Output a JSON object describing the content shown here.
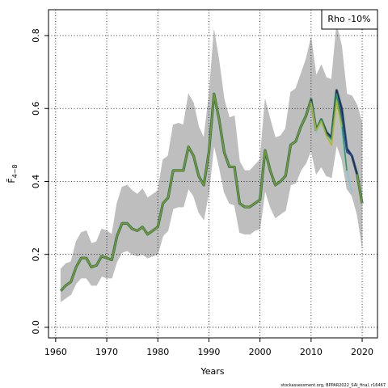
{
  "chart_data": {
    "type": "line",
    "annotation": "Rho -10%",
    "xlabel": "Years",
    "ylabel": "F̄",
    "ylabel_subscript": "4−8",
    "source": "stockassessment.org, BPPAR2022_SAI_final, r16467",
    "xlim": [
      1958.6,
      2023
    ],
    "ylim": [
      -0.029,
      0.871
    ],
    "xticks": [
      1960,
      1970,
      1980,
      1990,
      2000,
      2010,
      2020
    ],
    "yticks": [
      {
        "value": 0,
        "label": "0.0"
      },
      0.2,
      0.4,
      0.6,
      0.8
    ],
    "grid": true,
    "band": {
      "color": "#bebebe",
      "x": [
        1961,
        1962,
        1963,
        1964,
        1965,
        1966,
        1967,
        1968,
        1969,
        1970,
        1971,
        1972,
        1973,
        1974,
        1975,
        1976,
        1977,
        1978,
        1979,
        1980,
        1981,
        1982,
        1983,
        1984,
        1985,
        1986,
        1987,
        1988,
        1989,
        1990,
        1991,
        1992,
        1993,
        1994,
        1995,
        1996,
        1997,
        1998,
        1999,
        2000,
        2001,
        2002,
        2003,
        2004,
        2005,
        2006,
        2007,
        2008,
        2009,
        2010,
        2011,
        2012,
        2013,
        2014,
        2015,
        2016,
        2017,
        2018,
        2019,
        2020
      ],
      "upper": [
        0.16,
        0.175,
        0.18,
        0.235,
        0.26,
        0.265,
        0.23,
        0.235,
        0.27,
        0.265,
        0.255,
        0.34,
        0.385,
        0.39,
        0.375,
        0.365,
        0.38,
        0.355,
        0.365,
        0.375,
        0.46,
        0.47,
        0.555,
        0.56,
        0.555,
        0.64,
        0.615,
        0.55,
        0.52,
        0.635,
        0.815,
        0.73,
        0.625,
        0.575,
        0.58,
        0.455,
        0.43,
        0.43,
        0.445,
        0.46,
        0.625,
        0.57,
        0.52,
        0.525,
        0.545,
        0.645,
        0.655,
        0.695,
        0.735,
        0.795,
        0.69,
        0.72,
        0.685,
        0.68,
        0.83,
        0.77,
        0.64,
        0.635,
        0.61,
        0.56
      ],
      "lower": [
        0.07,
        0.08,
        0.09,
        0.12,
        0.135,
        0.135,
        0.115,
        0.115,
        0.14,
        0.135,
        0.135,
        0.18,
        0.205,
        0.21,
        0.2,
        0.195,
        0.2,
        0.19,
        0.195,
        0.2,
        0.25,
        0.265,
        0.325,
        0.33,
        0.33,
        0.38,
        0.36,
        0.315,
        0.295,
        0.37,
        0.5,
        0.44,
        0.37,
        0.34,
        0.335,
        0.26,
        0.255,
        0.255,
        0.265,
        0.27,
        0.375,
        0.33,
        0.3,
        0.31,
        0.32,
        0.39,
        0.395,
        0.43,
        0.45,
        0.485,
        0.42,
        0.44,
        0.415,
        0.41,
        0.5,
        0.46,
        0.38,
        0.36,
        0.31,
        0.22
      ]
    },
    "series": [
      {
        "color": "#7f9a22",
        "x": [
          1961,
          1962,
          1963,
          1964,
          1965,
          1966,
          1967,
          1968,
          1969,
          1970,
          1971,
          1972,
          1973,
          1974,
          1975,
          1976,
          1977,
          1978,
          1979,
          1980,
          1981,
          1982,
          1983,
          1984,
          1985,
          1986,
          1987,
          1988,
          1989,
          1990,
          1991,
          1992,
          1993,
          1994,
          1995,
          1996,
          1997,
          1998,
          1999,
          2000,
          2001,
          2002,
          2003,
          2004,
          2005,
          2006,
          2007,
          2008,
          2009,
          2010,
          2011,
          2012,
          2013,
          2014,
          2015,
          2016,
          2017,
          2018,
          2019,
          2020
        ],
        "values": [
          0.1,
          0.115,
          0.125,
          0.165,
          0.19,
          0.19,
          0.165,
          0.17,
          0.195,
          0.19,
          0.185,
          0.25,
          0.285,
          0.285,
          0.27,
          0.265,
          0.275,
          0.255,
          0.265,
          0.275,
          0.34,
          0.355,
          0.43,
          0.43,
          0.43,
          0.495,
          0.47,
          0.415,
          0.39,
          0.48,
          0.64,
          0.57,
          0.48,
          0.44,
          0.44,
          0.34,
          0.33,
          0.33,
          0.34,
          0.35,
          0.485,
          0.43,
          0.39,
          0.4,
          0.415,
          0.5,
          0.51,
          0.55,
          0.58,
          0.625,
          0.54,
          0.57,
          0.535,
          0.52,
          0.65,
          0.6,
          0.49,
          0.47,
          0.42,
          0.34
        ]
      },
      {
        "color": "#2d1b6e",
        "x": [
          2010,
          2011,
          2012,
          2013,
          2014,
          2015,
          2016,
          2017,
          2018,
          2019
        ],
        "values": [
          0.625,
          0.54,
          0.57,
          0.535,
          0.52,
          0.65,
          0.6,
          0.49,
          0.47,
          0.42
        ]
      },
      {
        "color": "#2a4d9b",
        "x": [
          2010,
          2011,
          2012,
          2013,
          2014,
          2015,
          2016,
          2017,
          2018
        ],
        "values": [
          0.62,
          0.54,
          0.565,
          0.53,
          0.515,
          0.64,
          0.58,
          0.48,
          0.47
        ]
      },
      {
        "color": "#7fc8d8",
        "x": [
          2010,
          2011,
          2012,
          2013,
          2014,
          2015,
          2016,
          2017,
          2018
        ],
        "values": [
          0.615,
          0.535,
          0.56,
          0.525,
          0.51,
          0.63,
          0.54,
          0.43,
          0.37
        ]
      },
      {
        "color": "#2e9a5a",
        "x": [
          2010,
          2011,
          2012,
          2013,
          2014,
          2015,
          2016,
          2017
        ],
        "values": [
          0.62,
          0.54,
          0.57,
          0.53,
          0.515,
          0.64,
          0.56,
          0.43
        ]
      },
      {
        "color": "#b5b520",
        "x": [
          2010,
          2011,
          2012,
          2013,
          2014,
          2015,
          2016
        ],
        "values": [
          0.615,
          0.54,
          0.565,
          0.525,
          0.5,
          0.62,
          0.55
        ]
      }
    ]
  }
}
